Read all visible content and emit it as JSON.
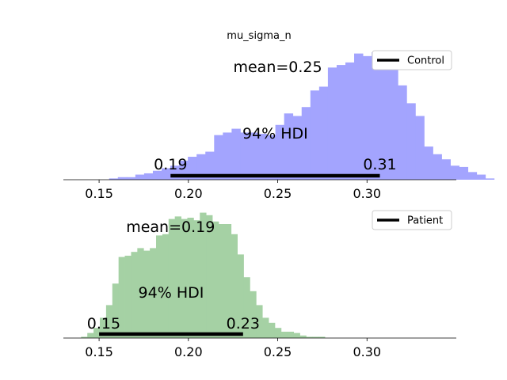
{
  "title": "mu_sigma_n",
  "chart_data": [
    {
      "type": "bar",
      "title": "mu_sigma_n",
      "series_name": "Control",
      "color": "#a3a4fe",
      "xlim": [
        0.13,
        0.35
      ],
      "xticks": [
        "0.15",
        "0.20",
        "0.25",
        "0.30"
      ],
      "xtick_values": [
        0.15,
        0.2,
        0.25,
        0.3
      ],
      "bin_start": 0.1556,
      "bin_width": 0.0049,
      "values": [
        0.01,
        0.02,
        0.02,
        0.04,
        0.05,
        0.07,
        0.09,
        0.11,
        0.15,
        0.18,
        0.2,
        0.22,
        0.35,
        0.37,
        0.4,
        0.37,
        0.37,
        0.36,
        0.35,
        0.43,
        0.52,
        0.5,
        0.57,
        0.7,
        0.73,
        0.88,
        0.9,
        0.92,
        0.99,
        0.97,
        1.0,
        0.91,
        0.86,
        0.74,
        0.6,
        0.5,
        0.26,
        0.2,
        0.16,
        0.11,
        0.1,
        0.06,
        0.04,
        0.01,
        0.0,
        0.0,
        0.0,
        0.01
      ],
      "mean_label": "mean=0.25",
      "mean": 0.25,
      "hdi_label": "94% HDI",
      "hdi_low": 0.19,
      "hdi_high": 0.31,
      "hdi_low_label": "0.19",
      "hdi_high_label": "0.31",
      "hdi_low_pos": 0.19,
      "hdi_high_pos": 0.3072,
      "legend": "Control",
      "legend_loc": "upper right"
    },
    {
      "type": "bar",
      "series_name": "Patient",
      "color": "#a5d1a4",
      "xlim": [
        0.13,
        0.35
      ],
      "xticks": [
        "0.15",
        "0.20",
        "0.25",
        "0.30"
      ],
      "xtick_values": [
        0.15,
        0.2,
        0.25,
        0.3
      ],
      "bin_start": 0.1399,
      "bin_width": 0.0035,
      "values": [
        0.01,
        0.04,
        0.08,
        0.16,
        0.26,
        0.43,
        0.64,
        0.65,
        0.68,
        0.71,
        0.69,
        0.71,
        0.81,
        0.82,
        0.94,
        0.96,
        0.94,
        0.95,
        0.93,
        0.99,
        0.97,
        0.92,
        0.9,
        0.9,
        0.82,
        0.66,
        0.48,
        0.37,
        0.26,
        0.16,
        0.12,
        0.08,
        0.05,
        0.05,
        0.04,
        0.02,
        0.01,
        0.01,
        0.01
      ],
      "mean_label": "mean=0.19",
      "mean": 0.19,
      "hdi_label": "94% HDI",
      "hdi_low": 0.15,
      "hdi_high": 0.23,
      "hdi_low_label": "0.15",
      "hdi_high_label": "0.23",
      "hdi_low_pos": 0.1526,
      "hdi_high_pos": 0.2306,
      "legend": "Patient",
      "legend_loc": "upper right"
    }
  ]
}
